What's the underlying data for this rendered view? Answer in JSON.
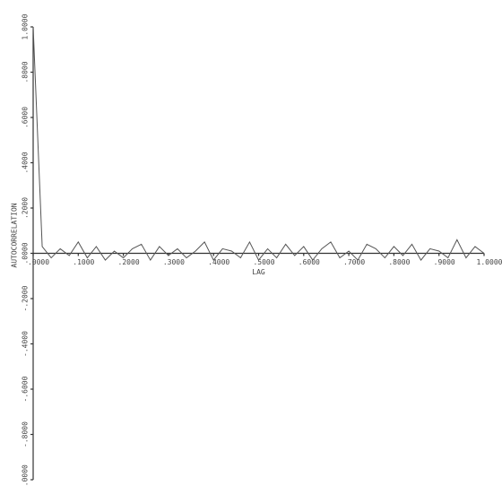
{
  "chart_data": {
    "type": "line",
    "x_label": "LAG",
    "y_label": "AUTOCORRELATION",
    "xlim": [
      0,
      1
    ],
    "ylim": [
      -1,
      1
    ],
    "xticks": [
      {
        "value": 0,
        "label": ".0000"
      },
      {
        "value": 0.1,
        "label": ".1000"
      },
      {
        "value": 0.2,
        "label": ".2000"
      },
      {
        "value": 0.3,
        "label": ".3000"
      },
      {
        "value": 0.4,
        "label": ".4000"
      },
      {
        "value": 0.5,
        "label": ".5000"
      },
      {
        "value": 0.6,
        "label": ".6000"
      },
      {
        "value": 0.7,
        "label": ".7000"
      },
      {
        "value": 0.8,
        "label": ".8000"
      },
      {
        "value": 0.9,
        "label": ".9000"
      },
      {
        "value": 1,
        "label": "1.0000"
      }
    ],
    "yticks": [
      {
        "value": -1,
        "label": "-1.0000"
      },
      {
        "value": -0.8,
        "label": "-.8000"
      },
      {
        "value": -0.6,
        "label": "-.6000"
      },
      {
        "value": -0.4,
        "label": "-.4000"
      },
      {
        "value": -0.2,
        "label": "-.2000"
      },
      {
        "value": 0,
        "label": ".0000"
      },
      {
        "value": 0.2,
        "label": ".2000"
      },
      {
        "value": 0.4,
        "label": ".4000"
      },
      {
        "value": 0.6,
        "label": ".6000"
      },
      {
        "value": 0.8,
        "label": ".8000"
      },
      {
        "value": 1,
        "label": "1.0000"
      }
    ],
    "color": "#555555",
    "x": [
      0,
      0.02,
      0.04,
      0.06,
      0.08,
      0.1,
      0.12,
      0.14,
      0.16,
      0.18,
      0.2,
      0.22,
      0.24,
      0.26,
      0.28,
      0.3,
      0.32,
      0.34,
      0.36,
      0.38,
      0.4,
      0.42,
      0.44,
      0.46,
      0.48,
      0.5,
      0.52,
      0.54,
      0.56,
      0.58,
      0.6,
      0.62,
      0.64,
      0.66,
      0.68,
      0.7,
      0.72,
      0.74,
      0.76,
      0.78,
      0.8,
      0.82,
      0.84,
      0.86,
      0.88,
      0.9,
      0.92,
      0.94,
      0.96,
      0.98,
      1
    ],
    "values": [
      1,
      0.03,
      -0.02,
      0.02,
      -0.01,
      0.05,
      -0.02,
      0.03,
      -0.03,
      0.01,
      -0.02,
      0.02,
      0.04,
      -0.03,
      0.03,
      -0.01,
      0.02,
      -0.02,
      0.01,
      0.05,
      -0.03,
      0.02,
      0.01,
      -0.02,
      0.05,
      -0.03,
      0.02,
      -0.02,
      0.04,
      -0.01,
      0.03,
      -0.03,
      0.02,
      0.05,
      -0.02,
      0.01,
      -0.03,
      0.04,
      0.02,
      -0.02,
      0.03,
      -0.01,
      0.04,
      -0.03,
      0.02,
      0.01,
      -0.02,
      0.06,
      -0.02,
      0.03,
      0
    ]
  }
}
